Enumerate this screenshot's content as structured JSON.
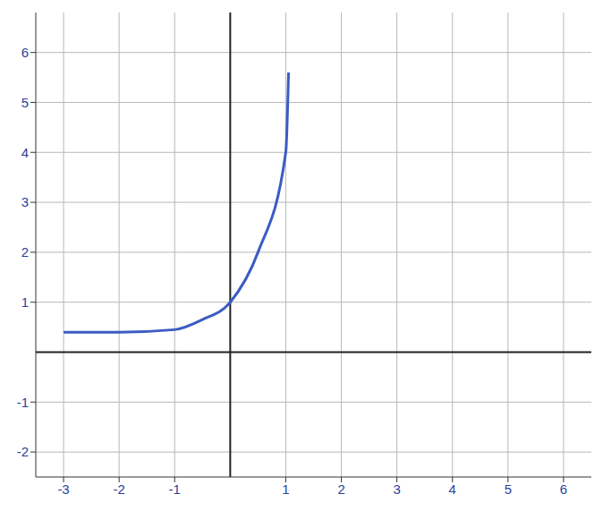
{
  "chart_data": {
    "type": "line",
    "x": [
      -3,
      -2,
      -1,
      -0.5,
      0,
      0.5,
      1,
      1.05
    ],
    "values": [
      0.4,
      0.4,
      0.45,
      0.65,
      1,
      2,
      4,
      5.6
    ],
    "color": "#3b5cc4",
    "xlim": [
      -3.5,
      6.5
    ],
    "ylim": [
      -2.5,
      6.8
    ],
    "xticks": [
      -3,
      -2,
      -1,
      1,
      2,
      3,
      4,
      5,
      6
    ],
    "yticks": [
      -2,
      -1,
      1,
      2,
      3,
      4,
      5,
      6
    ],
    "grid": true
  }
}
